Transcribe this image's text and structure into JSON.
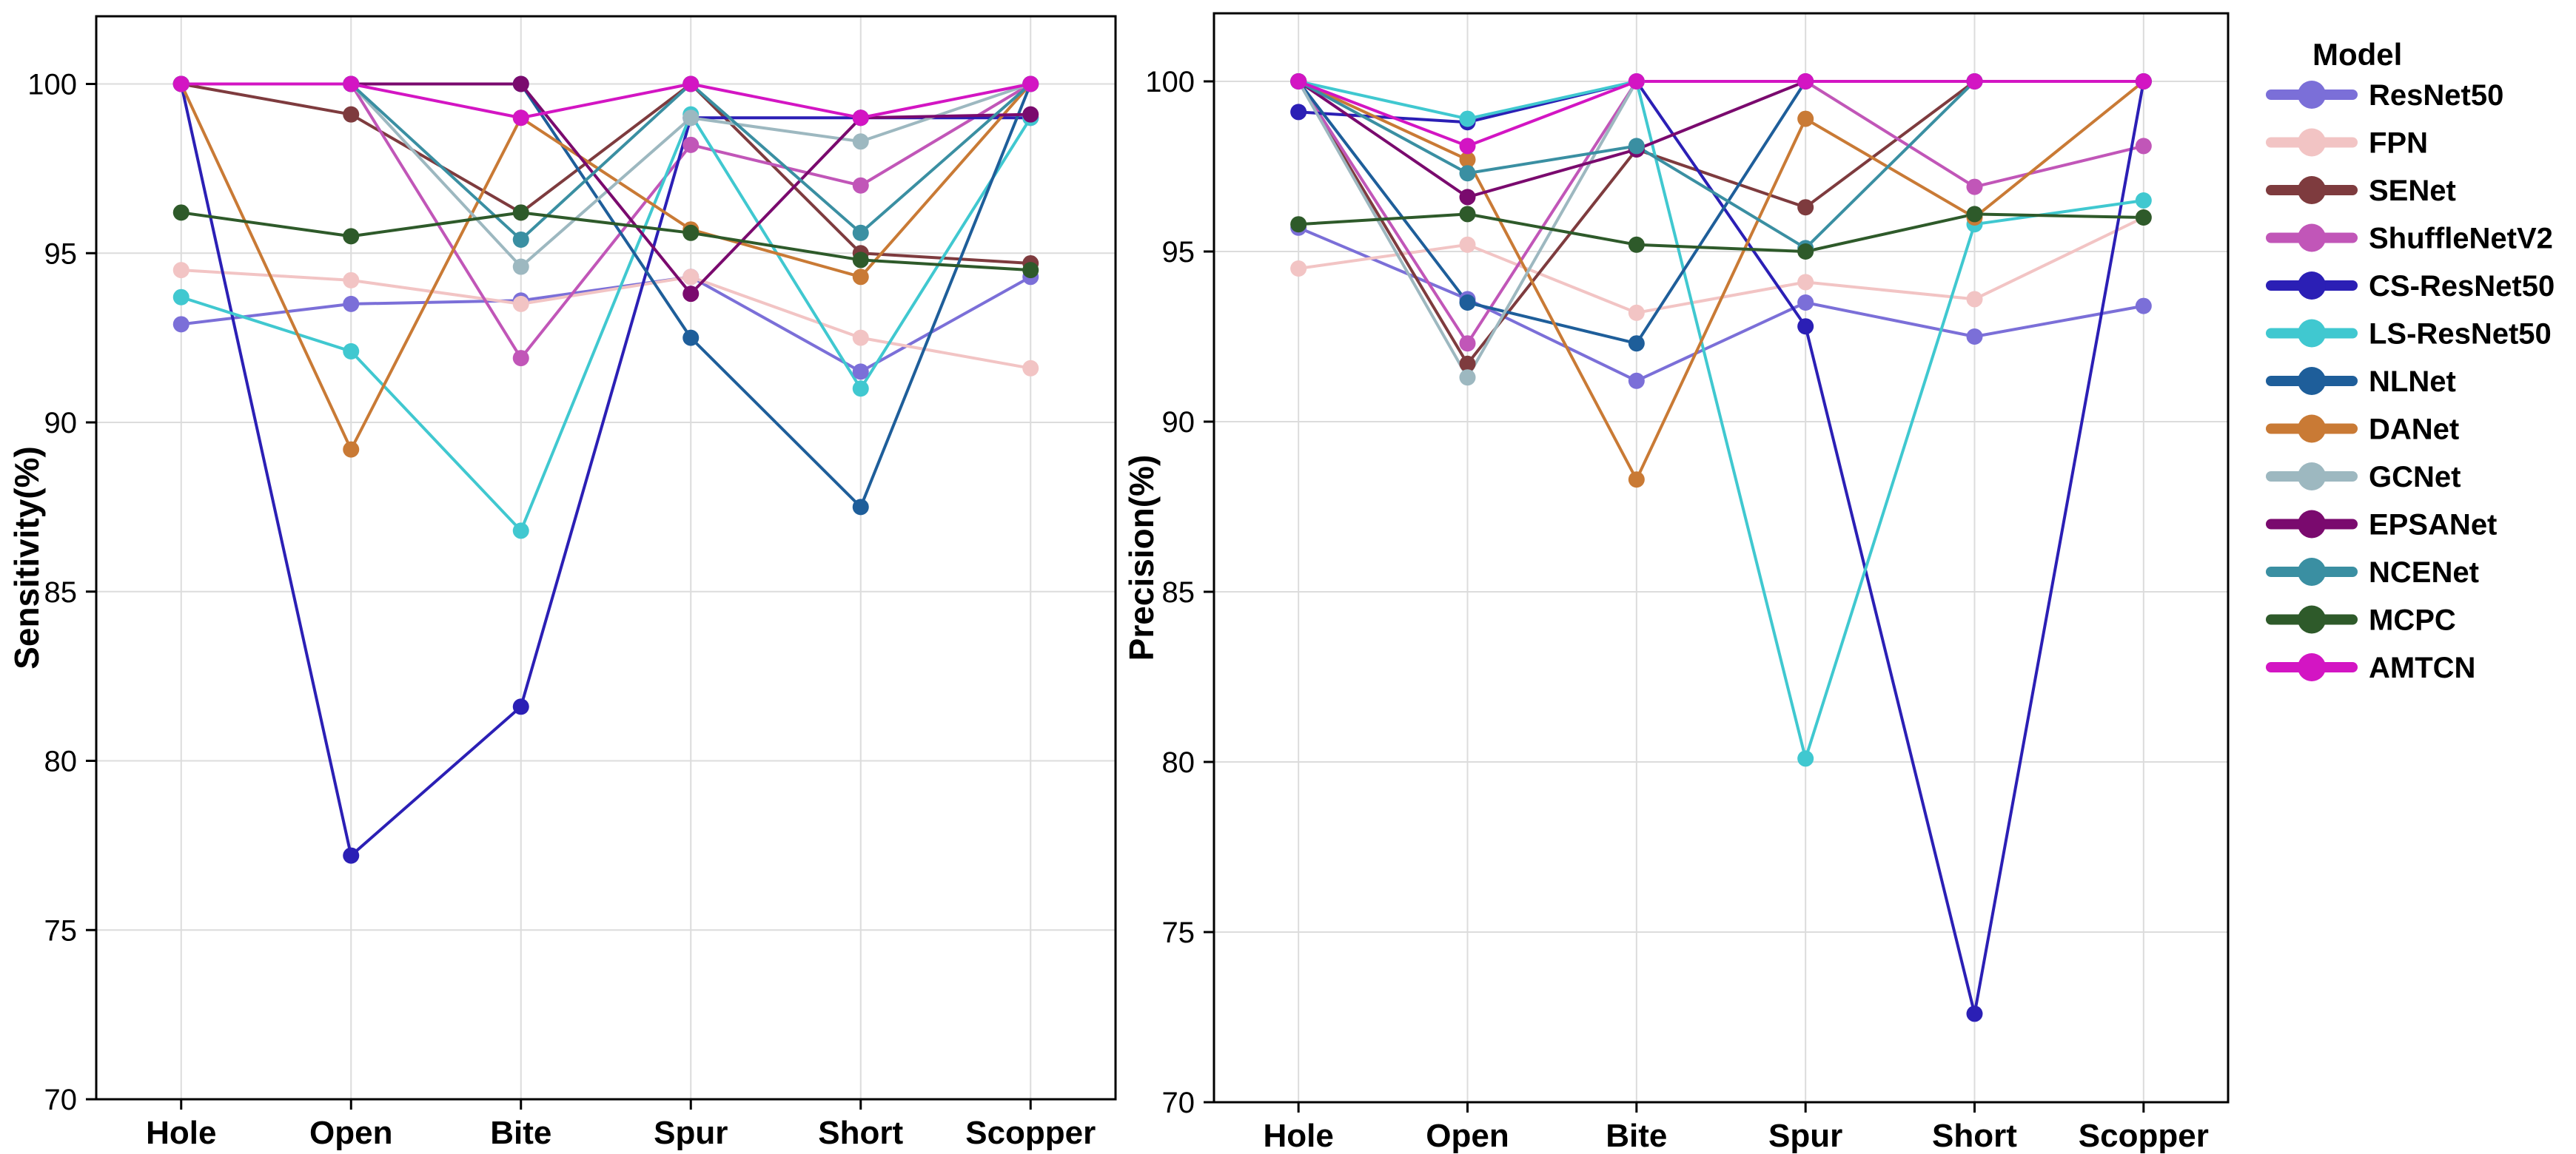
{
  "chart_data": [
    {
      "type": "line",
      "ylabel": "Sensitivity(%)",
      "ylim": [
        70,
        102
      ],
      "yticks": [
        70,
        75,
        80,
        85,
        90,
        95,
        100
      ],
      "categories": [
        "Hole",
        "Open",
        "Bite",
        "Spur",
        "Short",
        "Scopper"
      ],
      "grid": true,
      "series": [
        {
          "name": "ResNet50",
          "color": "#7B6FD8",
          "values": [
            92.9,
            93.5,
            93.6,
            94.3,
            91.5,
            94.3
          ]
        },
        {
          "name": "FPN",
          "color": "#F2C4C4",
          "values": [
            94.5,
            94.2,
            93.5,
            94.3,
            92.5,
            91.6
          ]
        },
        {
          "name": "SENet",
          "color": "#7E3B3E",
          "values": [
            100,
            99.1,
            96.2,
            100,
            95.0,
            94.7
          ]
        },
        {
          "name": "ShuffleNetV2",
          "color": "#C156B8",
          "values": [
            100,
            100,
            91.9,
            98.2,
            97.0,
            100
          ]
        },
        {
          "name": "CS-ResNet50",
          "color": "#2B1FB5",
          "values": [
            100,
            77.2,
            81.6,
            99.0,
            99.0,
            99.0
          ]
        },
        {
          "name": "LS-ResNet50",
          "color": "#40C8D0",
          "values": [
            93.7,
            92.1,
            86.8,
            99.1,
            91.0,
            99.0
          ]
        },
        {
          "name": "NLNet",
          "color": "#1E5E9A",
          "values": [
            100,
            100,
            100,
            92.5,
            87.5,
            100
          ]
        },
        {
          "name": "DANet",
          "color": "#C97A35",
          "values": [
            100,
            89.2,
            99.0,
            95.7,
            94.3,
            100
          ]
        },
        {
          "name": "GCNet",
          "color": "#9DB8C0",
          "values": [
            100,
            100,
            94.6,
            99.0,
            98.3,
            100
          ]
        },
        {
          "name": "EPSANet",
          "color": "#7A0A6E",
          "values": [
            100,
            100,
            100,
            93.8,
            99.0,
            99.1
          ]
        },
        {
          "name": "NCENet",
          "color": "#3A8FA2",
          "values": [
            100,
            100,
            95.4,
            100,
            95.6,
            100
          ]
        },
        {
          "name": "MCPC",
          "color": "#2E5A2A",
          "values": [
            96.2,
            95.5,
            96.2,
            95.6,
            94.8,
            94.5
          ]
        },
        {
          "name": "AMTCN",
          "color": "#D315C3",
          "values": [
            100,
            100,
            99.0,
            100,
            99.0,
            100
          ]
        }
      ]
    },
    {
      "type": "line",
      "ylabel": "Precision(%)",
      "ylim": [
        70,
        102
      ],
      "yticks": [
        70,
        75,
        80,
        85,
        90,
        95,
        100
      ],
      "categories": [
        "Hole",
        "Open",
        "Bite",
        "Spur",
        "Short",
        "Scopper"
      ],
      "grid": true,
      "series": [
        {
          "name": "ResNet50",
          "color": "#7B6FD8",
          "values": [
            95.7,
            93.6,
            91.2,
            93.5,
            92.5,
            93.4
          ]
        },
        {
          "name": "FPN",
          "color": "#F2C4C4",
          "values": [
            94.5,
            95.2,
            93.2,
            94.1,
            93.6,
            96.0
          ]
        },
        {
          "name": "SENet",
          "color": "#7E3B3E",
          "values": [
            100,
            91.7,
            98.0,
            96.3,
            100,
            100
          ]
        },
        {
          "name": "ShuffleNetV2",
          "color": "#C156B8",
          "values": [
            100,
            92.3,
            100,
            100,
            96.9,
            98.1
          ]
        },
        {
          "name": "CS-ResNet50",
          "color": "#2B1FB5",
          "values": [
            99.1,
            98.8,
            100,
            92.8,
            72.6,
            100
          ]
        },
        {
          "name": "LS-ResNet50",
          "color": "#40C8D0",
          "values": [
            100,
            98.9,
            100,
            80.1,
            95.8,
            96.5
          ]
        },
        {
          "name": "NLNet",
          "color": "#1E5E9A",
          "values": [
            100,
            93.5,
            92.3,
            100,
            100,
            100
          ]
        },
        {
          "name": "DANet",
          "color": "#C97A35",
          "values": [
            100,
            97.7,
            88.3,
            98.9,
            96.0,
            100
          ]
        },
        {
          "name": "GCNet",
          "color": "#9DB8C0",
          "values": [
            100,
            91.3,
            100,
            100,
            100,
            100
          ]
        },
        {
          "name": "EPSANet",
          "color": "#7A0A6E",
          "values": [
            100,
            96.6,
            98.0,
            100,
            100,
            100
          ]
        },
        {
          "name": "NCENet",
          "color": "#3A8FA2",
          "values": [
            100,
            97.3,
            98.1,
            95.1,
            100,
            100
          ]
        },
        {
          "name": "MCPC",
          "color": "#2E5A2A",
          "values": [
            95.8,
            96.1,
            95.2,
            95.0,
            96.1,
            96.0
          ]
        },
        {
          "name": "AMTCN",
          "color": "#D315C3",
          "values": [
            100,
            98.1,
            100,
            100,
            100,
            100
          ]
        }
      ]
    }
  ],
  "legend": {
    "title": "Model",
    "items": [
      "ResNet50",
      "FPN",
      "SENet",
      "ShuffleNetV2",
      "CS-ResNet50",
      "LS-ResNet50",
      "NLNet",
      "DANet",
      "GCNet",
      "EPSANet",
      "NCENet",
      "MCPC",
      "AMTCN"
    ]
  }
}
